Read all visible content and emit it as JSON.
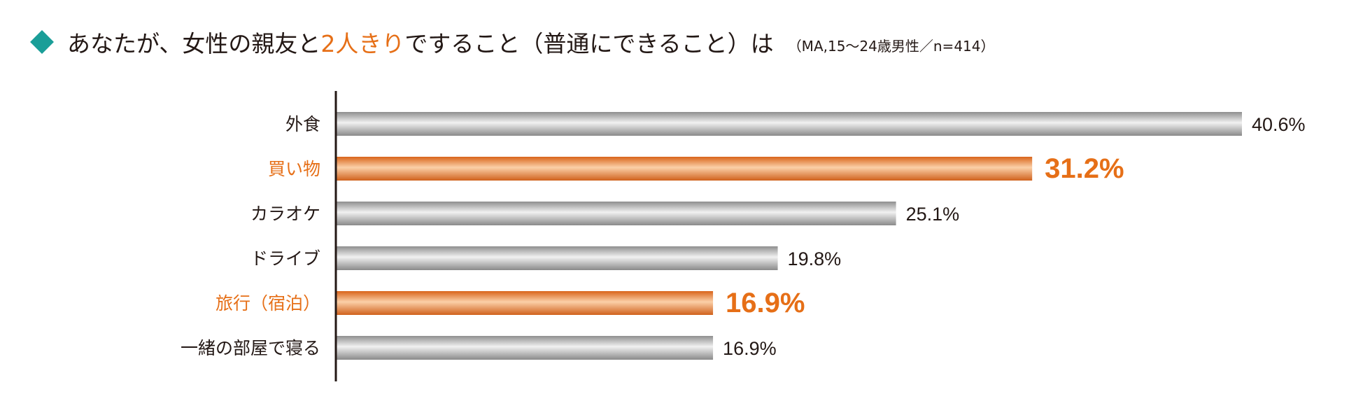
{
  "title": {
    "before": "あなたが、女性の親友と",
    "highlight": "2人きり",
    "after": "ですること（普通にできること）は",
    "note": "（MA,15〜24歳男性／n=414）"
  },
  "colors": {
    "accent": "#e66f17",
    "bar_default": "#b4b4b4",
    "text": "#231815",
    "diamond": "#1a9e98"
  },
  "chart_data": {
    "type": "bar",
    "orientation": "horizontal",
    "categories": [
      "外食",
      "買い物",
      "カラオケ",
      "ドライブ",
      "旅行（宿泊）",
      "一緒の部屋で寝る"
    ],
    "values": [
      40.6,
      31.2,
      25.1,
      19.8,
      16.9,
      16.9
    ],
    "value_labels": [
      "40.6%",
      "31.2%",
      "25.1%",
      "19.8%",
      "16.9%",
      "16.9%"
    ],
    "highlighted": [
      false,
      true,
      false,
      false,
      true,
      false
    ],
    "unit": "%",
    "xlim": [
      0,
      40.6
    ],
    "grid": false,
    "legend": "none"
  }
}
